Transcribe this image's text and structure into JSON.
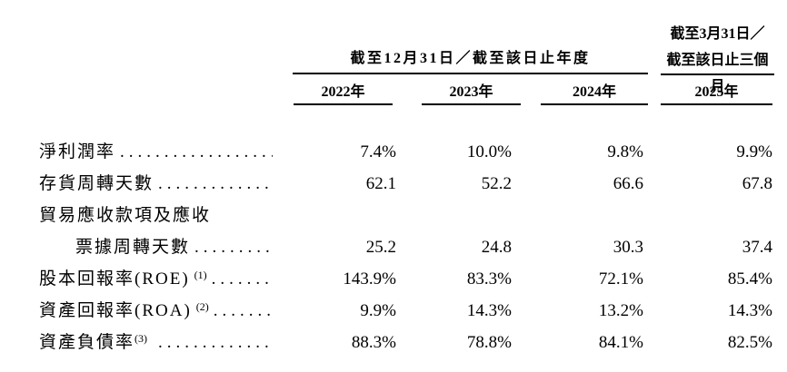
{
  "colors": {
    "text": "#000000",
    "background": "#ffffff",
    "rule": "#000000"
  },
  "table": {
    "header": {
      "annual_group_label": "截至12月31日／截至該日止年度",
      "quarter_group_label_line1": "截至3月31日／",
      "quarter_group_label_line2": "截至該日止三個月",
      "years": [
        "2022年",
        "2023年",
        "2024年",
        "2025年"
      ]
    },
    "dot_leader": ".............................................",
    "rows": [
      {
        "label": "淨利潤率",
        "sup": "",
        "values": [
          "7.4%",
          "10.0%",
          "9.8%",
          "9.9%"
        ]
      },
      {
        "label": "存貨周轉天數",
        "sup": "",
        "values": [
          "62.1",
          "52.2",
          "66.6",
          "67.8"
        ]
      },
      {
        "label": "貿易應收款項及應收",
        "sup": "",
        "values": [
          "",
          "",
          "",
          ""
        ]
      },
      {
        "label": "票據周轉天數",
        "sup": "",
        "values": [
          "25.2",
          "24.8",
          "30.3",
          "37.4"
        ]
      },
      {
        "label": "股本回報率(ROE)",
        "sup": "(1)",
        "values": [
          "143.9%",
          "83.3%",
          "72.1%",
          "85.4%"
        ]
      },
      {
        "label": "資產回報率(ROA)",
        "sup": "(2)",
        "values": [
          "9.9%",
          "14.3%",
          "13.2%",
          "14.3%"
        ]
      },
      {
        "label": "資產負債率",
        "sup": "(3)",
        "values": [
          "88.3%",
          "78.8%",
          "84.1%",
          "82.5%"
        ]
      }
    ]
  }
}
